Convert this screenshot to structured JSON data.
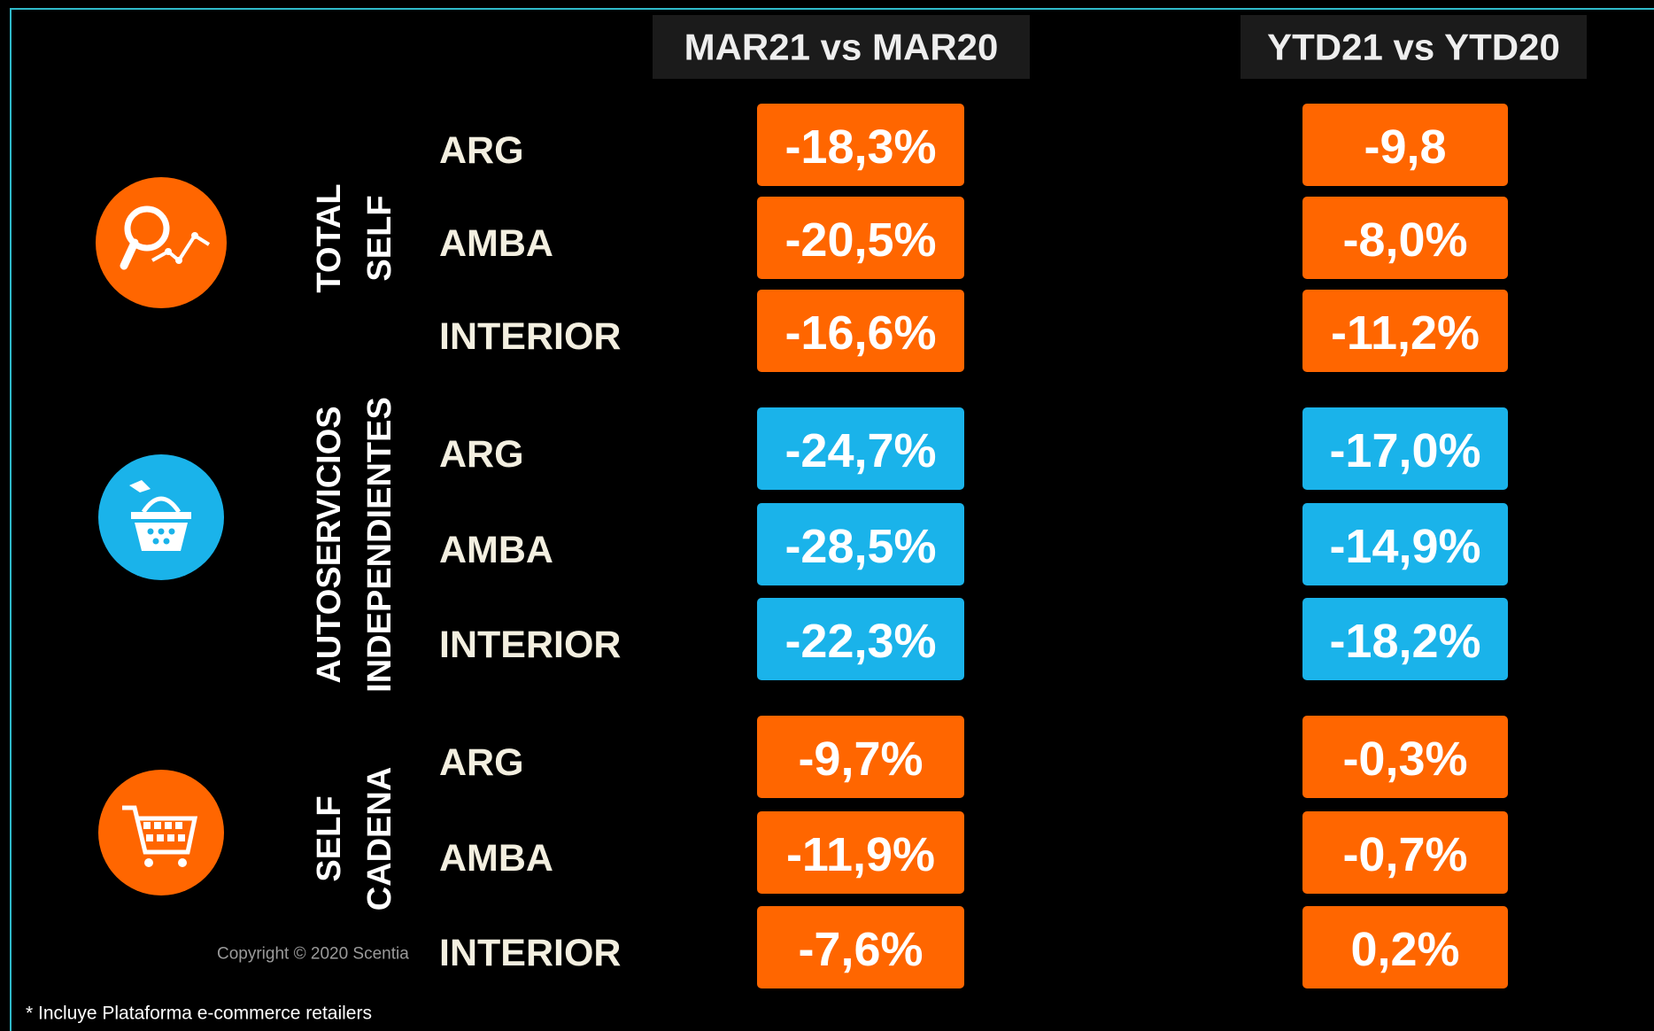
{
  "header": {
    "columns": [
      "MAR21 vs MAR20",
      "YTD21 vs YTD20"
    ]
  },
  "groups": [
    {
      "label": [
        "TOTAL",
        "SELF"
      ],
      "color": "#ff6600",
      "rows": [
        {
          "region": "ARG",
          "values": [
            "-18,3%",
            "-9,8"
          ]
        },
        {
          "region": "AMBA",
          "values": [
            "-20,5%",
            "-8,0%"
          ]
        },
        {
          "region": "INTERIOR",
          "values": [
            "-16,6%",
            "-11,2%"
          ]
        }
      ]
    },
    {
      "label": [
        "AUTOSERVICIOS",
        "INDEPENDIENTES"
      ],
      "color": "#1ab3ea",
      "rows": [
        {
          "region": "ARG",
          "values": [
            "-24,7%",
            "-17,0%"
          ]
        },
        {
          "region": "AMBA",
          "values": [
            "-28,5%",
            "-14,9%"
          ]
        },
        {
          "region": "INTERIOR",
          "values": [
            "-22,3%",
            "-18,2%"
          ]
        }
      ]
    },
    {
      "label": [
        "SELF",
        "CADENA"
      ],
      "color": "#ff6600",
      "rows": [
        {
          "region": "ARG",
          "values": [
            "-9,7%",
            "-0,3%"
          ]
        },
        {
          "region": "AMBA",
          "values": [
            "-11,9%",
            "-0,7%"
          ]
        },
        {
          "region": "INTERIOR",
          "values": [
            "-7,6%",
            "0,2%"
          ]
        }
      ]
    }
  ],
  "copyright": "Copyright © 2020 Scentia",
  "footnote": "* Incluye Plataforma e-commerce retailers"
}
